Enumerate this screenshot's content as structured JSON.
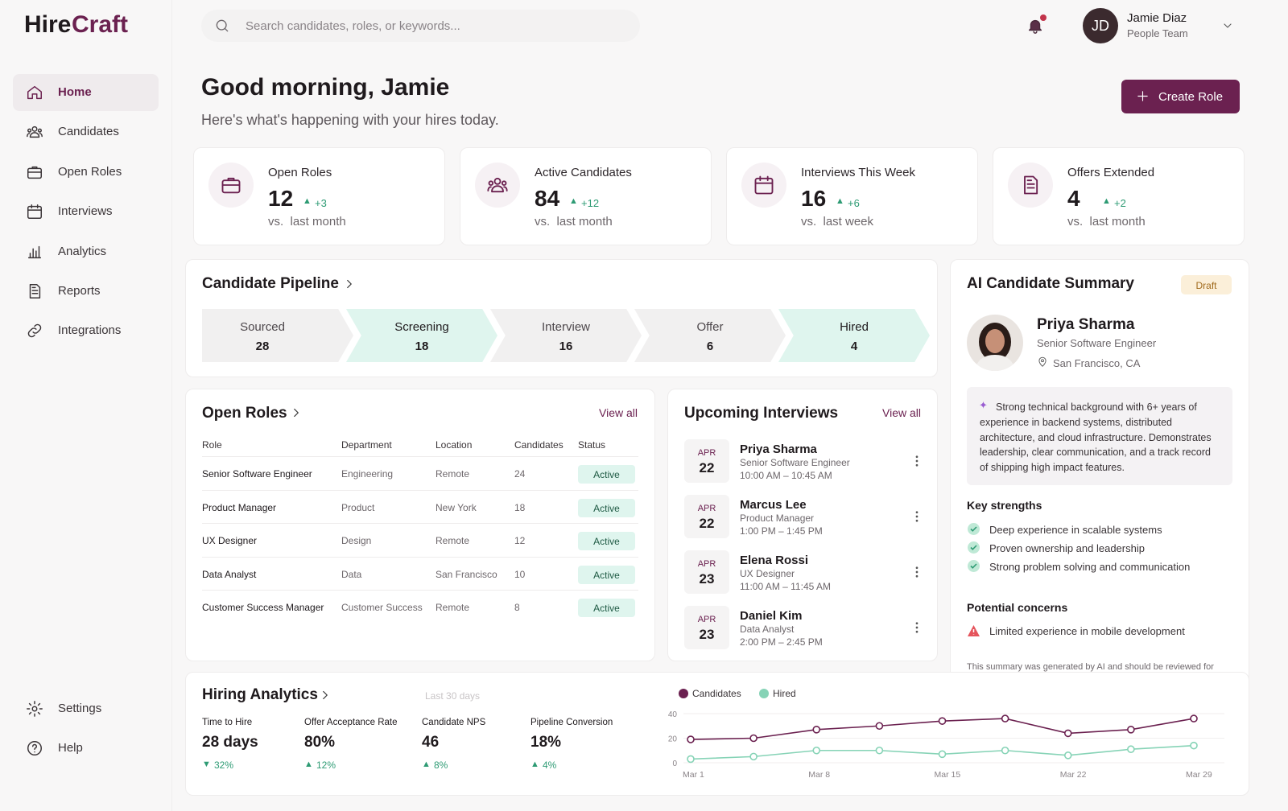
{
  "brand": [
    "Hire",
    "Craft"
  ],
  "search_placeholder": "Search candidates, roles, or keywords...",
  "user": {
    "initials": "JD",
    "name": "Jamie Diaz",
    "team": "People Team"
  },
  "nav": [
    "Home",
    "Candidates",
    "Open Roles",
    "Interviews",
    "Analytics",
    "Reports",
    "Integrations"
  ],
  "footer_nav": [
    "Settings",
    "Help"
  ],
  "greeting": "Good morning, Jamie",
  "subtitle": "Here's what's happening with your hires today.",
  "create_button": "Create Role",
  "stats": [
    {
      "label": "Open Roles",
      "value": 12,
      "delta": "+3",
      "note": "vs.  last month"
    },
    {
      "label": "Active Candidates",
      "value": 84,
      "delta": "+12",
      "note": "vs.  last month"
    },
    {
      "label": "Interviews This Week",
      "value": 16,
      "delta": "+6",
      "note": "vs.  last week"
    },
    {
      "label": "Offers Extended",
      "value": 4,
      "delta": "+2",
      "note": "vs.  last month"
    }
  ],
  "pipeline": {
    "title": "Candidate Pipeline",
    "stages": [
      {
        "name": "Sourced",
        "count": 28
      },
      {
        "name": "Screening",
        "count": 18
      },
      {
        "name": "Interview",
        "count": 16
      },
      {
        "name": "Offer",
        "count": 6
      },
      {
        "name": "Hired",
        "count": 4
      }
    ]
  },
  "open_roles": {
    "title": "Open Roles",
    "view_all": "View all",
    "columns": [
      "Role",
      "Department",
      "Location",
      "Candidates",
      "Status"
    ],
    "rows": [
      [
        "Senior Software Engineer",
        "Engineering",
        "Remote",
        24,
        "Active"
      ],
      [
        "Product Manager",
        "Product",
        "New York",
        18,
        "Active"
      ],
      [
        "UX Designer",
        "Design",
        "Remote",
        12,
        "Active"
      ],
      [
        "Data Analyst",
        "Data",
        "San Francisco",
        10,
        "Active"
      ],
      [
        "Customer Success Manager",
        "Customer Success",
        "Remote",
        8,
        "Active"
      ]
    ]
  },
  "interviews": {
    "title": "Upcoming Interviews",
    "view_all": "View all",
    "items": [
      {
        "month": "APR",
        "day": 22,
        "name": "Priya Sharma",
        "role": "Senior Software Engineer",
        "time": "10:00 AM – 10:45 AM"
      },
      {
        "month": "APR",
        "day": 22,
        "name": "Marcus Lee",
        "role": "Product Manager",
        "time": "1:00 PM – 1:45 PM"
      },
      {
        "month": "APR",
        "day": 23,
        "name": "Elena Rossi",
        "role": "UX Designer",
        "time": "11:00 AM – 11:45 AM"
      },
      {
        "month": "APR",
        "day": 23,
        "name": "Daniel Kim",
        "role": "Data Analyst",
        "time": "2:00 PM – 2:45 PM"
      }
    ]
  },
  "ai_summary": {
    "title": "AI Candidate Summary",
    "badge": "Draft",
    "name": "Priya Sharma",
    "role": "Senior Software Engineer",
    "location": "San Francisco, CA",
    "summary": "Strong technical background with 6+ years of experience in backend systems, distributed architecture, and cloud infrastructure. Demonstrates leadership, clear communication, and a track record of shipping high impact features.",
    "strengths_title": "Key strengths",
    "strengths": [
      "Deep experience in scalable systems",
      "Proven ownership and leadership",
      "Strong problem solving and communication"
    ],
    "concerns_title": "Potential concerns",
    "concerns": [
      "Limited experience in mobile development"
    ],
    "disclaimer": "This summary was generated by AI and should be reviewed for accuracy."
  },
  "analytics": {
    "title": "Hiring Analytics",
    "range": "Last 30 days",
    "metrics": [
      {
        "label": "Time to Hire",
        "value": "28 days",
        "delta": "32%",
        "trend": "down"
      },
      {
        "label": "Offer Acceptance Rate",
        "value": "80%",
        "delta": "12%",
        "trend": "up"
      },
      {
        "label": "Candidate NPS",
        "value": "46",
        "delta": "8%",
        "trend": "up"
      },
      {
        "label": "Pipeline Conversion",
        "value": "18%",
        "delta": "4%",
        "trend": "up"
      }
    ]
  },
  "chart_data": {
    "type": "line",
    "categories": [
      "Mar 1",
      null,
      "Mar 8",
      null,
      "Mar 15",
      null,
      "Mar 22",
      null,
      "Mar 29"
    ],
    "series": [
      {
        "name": "Candidates",
        "color": "#6b2150",
        "values": [
          19,
          20,
          27,
          30,
          34,
          36,
          24,
          27,
          36
        ]
      },
      {
        "name": "Hired",
        "color": "#86d3b6",
        "values": [
          3,
          5,
          10,
          10,
          7,
          10,
          6,
          11,
          14
        ]
      }
    ],
    "ylim": [
      0,
      40
    ],
    "yticks": [
      0,
      20,
      40
    ],
    "grid": true,
    "legend": "top-left"
  }
}
